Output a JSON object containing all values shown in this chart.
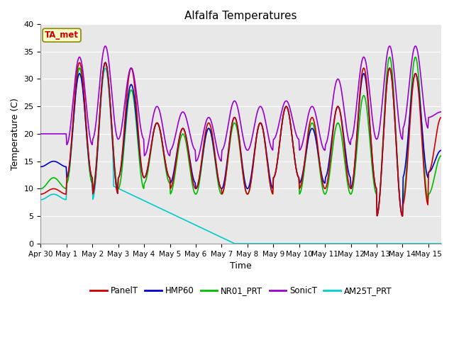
{
  "title": "Alfalfa Temperatures",
  "xlabel": "Time",
  "ylabel": "Temperature (C)",
  "ylim": [
    0,
    40
  ],
  "annotation": "TA_met",
  "background_color": "#e8e8e8",
  "series": {
    "PanelT": {
      "color": "#cc0000",
      "lw": 1.2
    },
    "HMP60": {
      "color": "#0000cc",
      "lw": 1.2
    },
    "NR01_PRT": {
      "color": "#00bb00",
      "lw": 1.2
    },
    "SonicT": {
      "color": "#9900cc",
      "lw": 1.2
    },
    "AM25T_PRT": {
      "color": "#00cccc",
      "lw": 1.2
    }
  },
  "tick_days": [
    0,
    1,
    2,
    3,
    4,
    5,
    6,
    7,
    8,
    9,
    10,
    11,
    12,
    13,
    14,
    15
  ],
  "tick_labels": [
    "Apr 30",
    "May 1",
    "May 2",
    "May 3",
    "May 4",
    "May 5",
    "May 6",
    "May 7",
    "May 8",
    "May 9",
    "May 10",
    "May 11",
    "May 12",
    "May 13",
    "May 14",
    "May 15"
  ],
  "yticks": [
    0,
    5,
    10,
    15,
    20,
    25,
    30,
    35,
    40
  ]
}
